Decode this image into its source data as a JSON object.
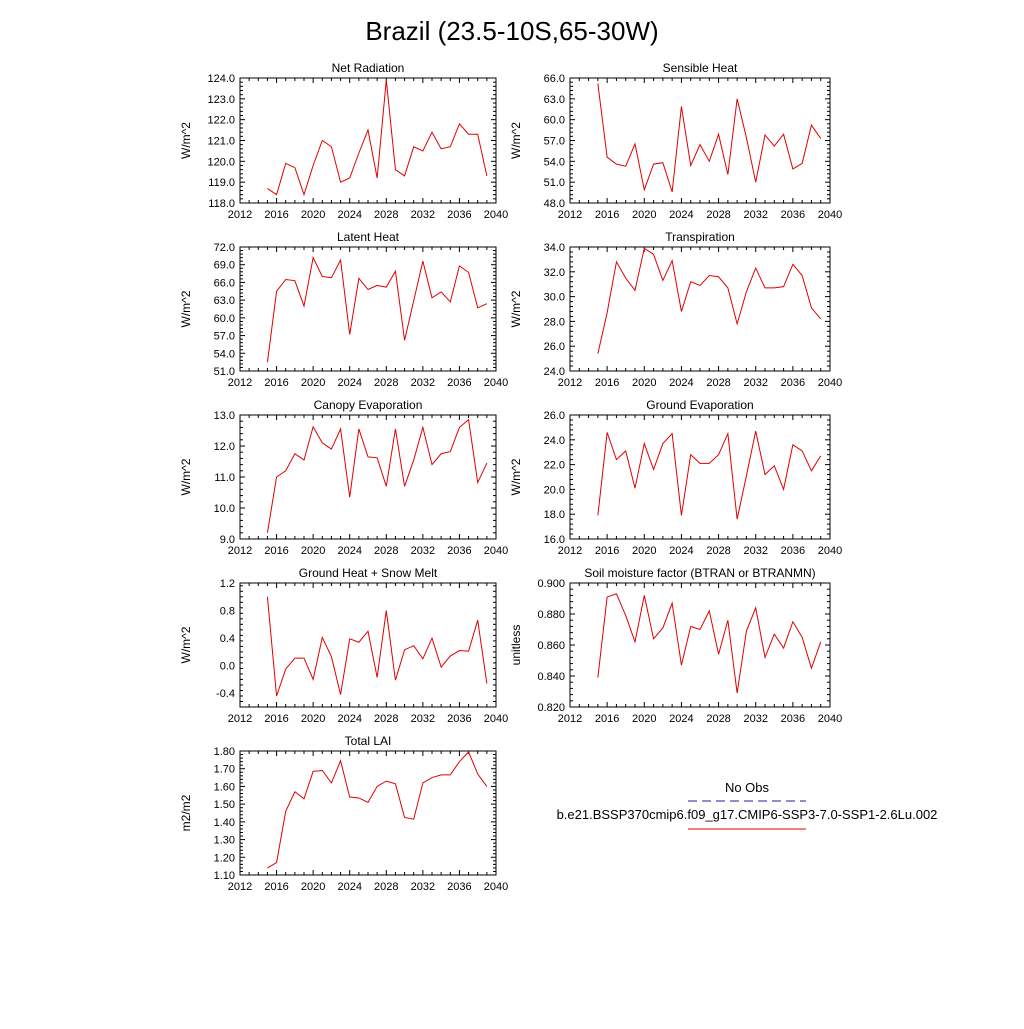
{
  "figure": {
    "title": "Brazil (23.5-10S,65-30W)"
  },
  "legend": {
    "entries": [
      {
        "label": "No Obs",
        "color": "#1f1f9f",
        "dash": true
      },
      {
        "label": "b.e21.BSSP370cmip6.f09_g17.CMIP6-SSP3-7.0-SSP1-2.6Lu.002",
        "color": "#e00000",
        "dash": false
      }
    ]
  },
  "chart_data": [
    {
      "type": "line",
      "title": "Net Radiation",
      "ylabel": "W/m^2",
      "xlim": [
        2012,
        2040
      ],
      "ylim": [
        118.0,
        124.0
      ],
      "xticks": [
        2012,
        2016,
        2020,
        2024,
        2028,
        2032,
        2036,
        2040
      ],
      "yticks": [
        "118.0",
        "119.0",
        "120.0",
        "121.0",
        "122.0",
        "123.0",
        "124.0"
      ],
      "x": [
        2015,
        2016,
        2017,
        2018,
        2019,
        2020,
        2021,
        2022,
        2023,
        2024,
        2025,
        2026,
        2027,
        2028,
        2029,
        2030,
        2031,
        2032,
        2033,
        2034,
        2035,
        2036,
        2037,
        2038,
        2039
      ],
      "series": [
        {
          "color": "#e00000",
          "values": [
            118.7,
            118.4,
            119.9,
            119.7,
            118.4,
            119.8,
            121.0,
            120.7,
            119.0,
            119.2,
            120.4,
            121.5,
            119.2,
            123.9,
            119.6,
            119.3,
            120.7,
            120.5,
            121.4,
            120.6,
            120.7,
            121.8,
            121.3,
            121.3,
            119.3
          ]
        }
      ]
    },
    {
      "type": "line",
      "title": "Sensible Heat",
      "ylabel": "W/m^2",
      "xlim": [
        2012,
        2040
      ],
      "ylim": [
        48.0,
        66.0
      ],
      "xticks": [
        2012,
        2016,
        2020,
        2024,
        2028,
        2032,
        2036,
        2040
      ],
      "yticks": [
        "48.0",
        "51.0",
        "54.0",
        "57.0",
        "60.0",
        "63.0",
        "66.0"
      ],
      "x": [
        2015,
        2016,
        2017,
        2018,
        2019,
        2020,
        2021,
        2022,
        2023,
        2024,
        2025,
        2026,
        2027,
        2028,
        2029,
        2030,
        2031,
        2032,
        2033,
        2034,
        2035,
        2036,
        2037,
        2038,
        2039
      ],
      "series": [
        {
          "color": "#e00000",
          "values": [
            65.2,
            54.6,
            53.6,
            53.3,
            56.5,
            49.9,
            53.6,
            53.8,
            49.6,
            61.9,
            53.4,
            56.4,
            54.0,
            57.9,
            52.1,
            63.0,
            57.4,
            51.0,
            57.8,
            56.2,
            57.9,
            52.9,
            53.7,
            59.2,
            57.3
          ]
        }
      ]
    },
    {
      "type": "line",
      "title": "Latent Heat",
      "ylabel": "W/m^2",
      "xlim": [
        2012,
        2040
      ],
      "ylim": [
        51.0,
        72.0
      ],
      "xticks": [
        2012,
        2016,
        2020,
        2024,
        2028,
        2032,
        2036,
        2040
      ],
      "yticks": [
        "51.0",
        "54.0",
        "57.0",
        "60.0",
        "63.0",
        "66.0",
        "69.0",
        "72.0"
      ],
      "x": [
        2015,
        2016,
        2017,
        2018,
        2019,
        2020,
        2021,
        2022,
        2023,
        2024,
        2025,
        2026,
        2027,
        2028,
        2029,
        2030,
        2031,
        2032,
        2033,
        2034,
        2035,
        2036,
        2037,
        2038,
        2039
      ],
      "series": [
        {
          "color": "#e00000",
          "values": [
            52.5,
            64.5,
            66.5,
            66.3,
            62.0,
            70.2,
            67.0,
            66.8,
            69.8,
            57.2,
            66.7,
            64.8,
            65.5,
            65.2,
            67.9,
            56.2,
            62.9,
            69.6,
            63.4,
            64.4,
            62.7,
            68.8,
            67.7,
            61.7,
            62.4
          ]
        }
      ]
    },
    {
      "type": "line",
      "title": "Transpiration",
      "ylabel": "W/m^2",
      "xlim": [
        2012,
        2040
      ],
      "ylim": [
        24.0,
        34.0
      ],
      "xticks": [
        2012,
        2016,
        2020,
        2024,
        2028,
        2032,
        2036,
        2040
      ],
      "yticks": [
        "24.0",
        "26.0",
        "28.0",
        "30.0",
        "32.0",
        "34.0"
      ],
      "x": [
        2015,
        2016,
        2017,
        2018,
        2019,
        2020,
        2021,
        2022,
        2023,
        2024,
        2025,
        2026,
        2027,
        2028,
        2029,
        2030,
        2031,
        2032,
        2033,
        2034,
        2035,
        2036,
        2037,
        2038,
        2039
      ],
      "series": [
        {
          "color": "#e00000",
          "values": [
            25.4,
            28.7,
            32.8,
            31.5,
            30.5,
            33.9,
            33.4,
            31.3,
            32.9,
            28.8,
            31.2,
            30.9,
            31.7,
            31.6,
            30.7,
            27.8,
            30.4,
            32.3,
            30.7,
            30.7,
            30.8,
            32.6,
            31.7,
            29.1,
            28.2
          ]
        }
      ]
    },
    {
      "type": "line",
      "title": "Canopy Evaporation",
      "ylabel": "W/m^2",
      "xlim": [
        2012,
        2040
      ],
      "ylim": [
        9.0,
        13.0
      ],
      "xticks": [
        2012,
        2016,
        2020,
        2024,
        2028,
        2032,
        2036,
        2040
      ],
      "yticks": [
        "9.0",
        "10.0",
        "11.0",
        "12.0",
        "13.0"
      ],
      "x": [
        2015,
        2016,
        2017,
        2018,
        2019,
        2020,
        2021,
        2022,
        2023,
        2024,
        2025,
        2026,
        2027,
        2028,
        2029,
        2030,
        2031,
        2032,
        2033,
        2034,
        2035,
        2036,
        2037,
        2038,
        2039
      ],
      "series": [
        {
          "color": "#e00000",
          "values": [
            9.2,
            11.0,
            11.2,
            11.75,
            11.55,
            12.62,
            12.1,
            11.9,
            12.55,
            10.35,
            12.55,
            11.65,
            11.62,
            10.7,
            12.55,
            10.7,
            11.55,
            12.6,
            11.4,
            11.75,
            11.82,
            12.6,
            12.85,
            10.82,
            11.45
          ]
        }
      ]
    },
    {
      "type": "line",
      "title": "Ground Evaporation",
      "ylabel": "W/m^2",
      "xlim": [
        2012,
        2040
      ],
      "ylim": [
        16.0,
        26.0
      ],
      "xticks": [
        2012,
        2016,
        2020,
        2024,
        2028,
        2032,
        2036,
        2040
      ],
      "yticks": [
        "16.0",
        "18.0",
        "20.0",
        "22.0",
        "24.0",
        "26.0"
      ],
      "x": [
        2015,
        2016,
        2017,
        2018,
        2019,
        2020,
        2021,
        2022,
        2023,
        2024,
        2025,
        2026,
        2027,
        2028,
        2029,
        2030,
        2031,
        2032,
        2033,
        2034,
        2035,
        2036,
        2037,
        2038,
        2039
      ],
      "series": [
        {
          "color": "#e00000",
          "values": [
            17.9,
            24.6,
            22.4,
            23.1,
            20.1,
            23.7,
            21.6,
            23.7,
            24.5,
            17.9,
            22.8,
            22.1,
            22.1,
            22.8,
            24.5,
            17.6,
            21.1,
            24.7,
            21.2,
            21.9,
            20.0,
            23.6,
            23.1,
            21.5,
            22.7
          ]
        }
      ]
    },
    {
      "type": "line",
      "title": "Ground Heat + Snow Melt",
      "ylabel": "W/m^2",
      "xlim": [
        2012,
        2040
      ],
      "ylim": [
        -0.6,
        1.2
      ],
      "xticks": [
        2012,
        2016,
        2020,
        2024,
        2028,
        2032,
        2036,
        2040
      ],
      "yticks": [
        "-0.4",
        "0.0",
        "0.4",
        "0.8",
        "1.2"
      ],
      "ytickvals": [
        -0.4,
        0.0,
        0.4,
        0.8,
        1.2
      ],
      "x": [
        2015,
        2016,
        2017,
        2018,
        2019,
        2020,
        2021,
        2022,
        2023,
        2024,
        2025,
        2026,
        2027,
        2028,
        2029,
        2030,
        2031,
        2032,
        2033,
        2034,
        2035,
        2036,
        2037,
        2038,
        2039
      ],
      "series": [
        {
          "color": "#e00000",
          "values": [
            1.0,
            -0.44,
            -0.05,
            0.11,
            0.11,
            -0.2,
            0.41,
            0.13,
            -0.42,
            0.39,
            0.34,
            0.5,
            -0.17,
            0.8,
            -0.21,
            0.23,
            0.29,
            0.1,
            0.4,
            -0.02,
            0.14,
            0.22,
            0.21,
            0.66,
            -0.26
          ]
        }
      ]
    },
    {
      "type": "line",
      "title": "Soil moisture factor (BTRAN or BTRANMN)",
      "ylabel": "unitless",
      "xlim": [
        2012,
        2040
      ],
      "ylim": [
        0.82,
        0.9
      ],
      "xticks": [
        2012,
        2016,
        2020,
        2024,
        2028,
        2032,
        2036,
        2040
      ],
      "yticks": [
        "0.820",
        "0.840",
        "0.860",
        "0.880",
        "0.900"
      ],
      "x": [
        2015,
        2016,
        2017,
        2018,
        2019,
        2020,
        2021,
        2022,
        2023,
        2024,
        2025,
        2026,
        2027,
        2028,
        2029,
        2030,
        2031,
        2032,
        2033,
        2034,
        2035,
        2036,
        2037,
        2038,
        2039
      ],
      "series": [
        {
          "color": "#e00000",
          "values": [
            0.839,
            0.891,
            0.893,
            0.879,
            0.862,
            0.892,
            0.864,
            0.871,
            0.887,
            0.847,
            0.872,
            0.87,
            0.882,
            0.854,
            0.876,
            0.829,
            0.869,
            0.884,
            0.852,
            0.867,
            0.858,
            0.875,
            0.865,
            0.845,
            0.862
          ]
        }
      ]
    },
    {
      "type": "line",
      "title": "Total LAI",
      "ylabel": "m2/m2",
      "xlim": [
        2012,
        2040
      ],
      "ylim": [
        1.1,
        1.8
      ],
      "xticks": [
        2012,
        2016,
        2020,
        2024,
        2028,
        2032,
        2036,
        2040
      ],
      "yticks": [
        "1.10",
        "1.20",
        "1.30",
        "1.40",
        "1.50",
        "1.60",
        "1.70",
        "1.80"
      ],
      "x": [
        2015,
        2016,
        2017,
        2018,
        2019,
        2020,
        2021,
        2022,
        2023,
        2024,
        2025,
        2026,
        2027,
        2028,
        2029,
        2030,
        2031,
        2032,
        2033,
        2034,
        2035,
        2036,
        2037,
        2038,
        2039
      ],
      "series": [
        {
          "color": "#e00000",
          "values": [
            1.14,
            1.17,
            1.46,
            1.57,
            1.53,
            1.685,
            1.69,
            1.62,
            1.745,
            1.54,
            1.535,
            1.51,
            1.6,
            1.63,
            1.615,
            1.425,
            1.415,
            1.62,
            1.65,
            1.665,
            1.665,
            1.74,
            1.795,
            1.67,
            1.6
          ]
        }
      ]
    }
  ]
}
